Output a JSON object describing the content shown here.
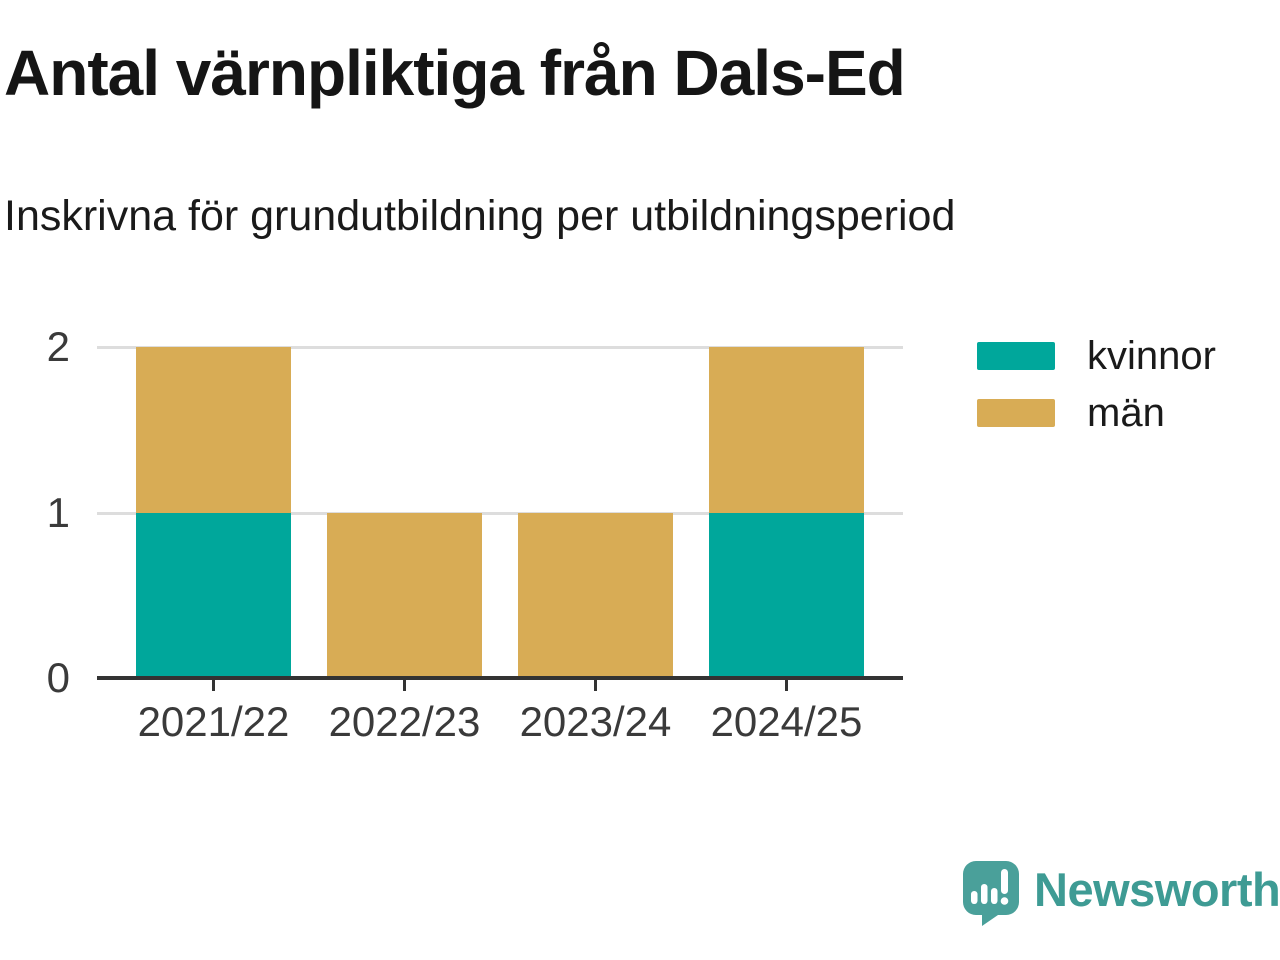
{
  "header": {
    "title": "Antal värnpliktiga från Dals-Ed",
    "subtitle": "Inskrivna för grundutbildning per utbildningsperiod"
  },
  "colors": {
    "kvinnor": "#00A79B",
    "man": "#D8AC55",
    "grid": "#DDDDDD",
    "axis": "#333333",
    "tick_text": "#3A3A3A",
    "title_text": "#151515",
    "logo_teal": "#4AA09A",
    "wordmark_teal": "#3E9B94"
  },
  "chart_data": {
    "type": "bar",
    "stacked": true,
    "title": "Antal värnpliktiga från Dals-Ed",
    "subtitle": "Inskrivna för grundutbildning per utbildningsperiod",
    "categories": [
      "2021/22",
      "2022/23",
      "2023/24",
      "2024/25"
    ],
    "series": [
      {
        "name": "kvinnor",
        "color": "#00A79B",
        "values": [
          1,
          0,
          0,
          1
        ]
      },
      {
        "name": "män",
        "color": "#D8AC55",
        "values": [
          1,
          1,
          1,
          1
        ]
      }
    ],
    "totals": [
      2,
      1,
      1,
      2
    ],
    "xlabel": "",
    "ylabel": "",
    "ylim": [
      0,
      2
    ],
    "yticks": [
      0,
      1,
      2
    ],
    "grid": true,
    "legend_position": "right-top"
  },
  "legend": {
    "items": [
      {
        "label": "kvinnor",
        "color": "#00A79B"
      },
      {
        "label": "män",
        "color": "#D8AC55"
      }
    ]
  },
  "footer": {
    "brand": "Newsworthy"
  }
}
